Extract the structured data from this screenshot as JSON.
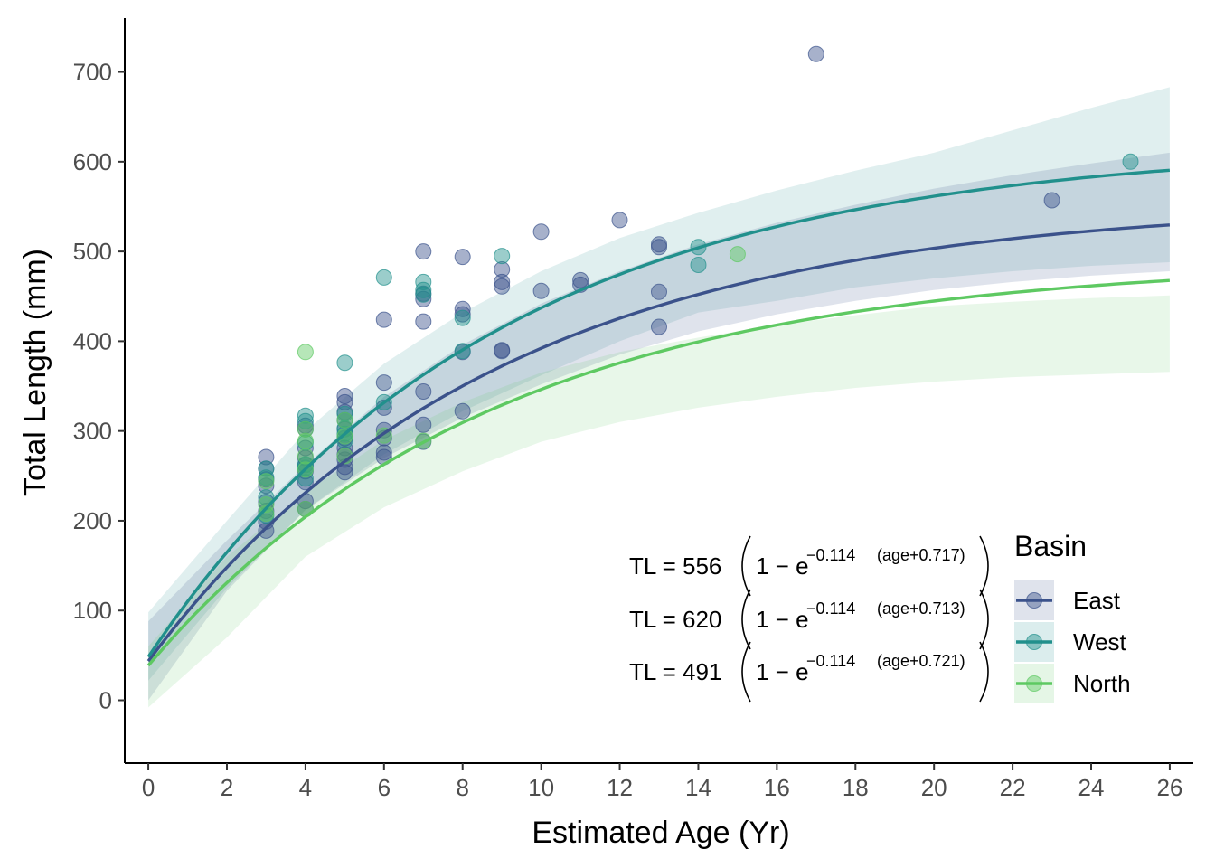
{
  "chart_data": {
    "type": "scatter",
    "xlabel": "Estimated Age (Yr)",
    "ylabel": "Total Length (mm)",
    "xlim": [
      -0.6,
      26.6
    ],
    "ylim": [
      -70,
      760
    ],
    "x_ticks": [
      0,
      2,
      4,
      6,
      8,
      10,
      12,
      14,
      16,
      18,
      20,
      22,
      24,
      26
    ],
    "y_ticks": [
      0,
      100,
      200,
      300,
      400,
      500,
      600,
      700
    ],
    "grid": false,
    "legend": {
      "title": "Basin",
      "position": "bottom-right",
      "entries": [
        "East",
        "West",
        "North"
      ]
    },
    "series": [
      {
        "name": "East",
        "color": "#3b528b",
        "band_color": "#3b528b",
        "fit": {
          "Linf": 556,
          "K": 0.114,
          "t0": -0.717
        },
        "band_upper": [
          [
            0,
            88
          ],
          [
            2,
            178
          ],
          [
            4,
            262
          ],
          [
            6,
            338
          ],
          [
            8,
            396
          ],
          [
            10,
            442
          ],
          [
            12,
            478
          ],
          [
            14,
            508
          ],
          [
            16,
            532
          ],
          [
            18,
            552
          ],
          [
            20,
            570
          ],
          [
            22,
            585
          ],
          [
            24,
            598
          ],
          [
            26,
            610
          ]
        ],
        "band_lower": [
          [
            0,
            0
          ],
          [
            2,
            122
          ],
          [
            4,
            212
          ],
          [
            6,
            270
          ],
          [
            8,
            315
          ],
          [
            10,
            352
          ],
          [
            12,
            385
          ],
          [
            14,
            411
          ],
          [
            16,
            430
          ],
          [
            18,
            445
          ],
          [
            20,
            457
          ],
          [
            22,
            466
          ],
          [
            24,
            473
          ],
          [
            26,
            478
          ]
        ],
        "points": [
          [
            3,
            271
          ],
          [
            3,
            258
          ],
          [
            3,
            246
          ],
          [
            3,
            239
          ],
          [
            3,
            221
          ],
          [
            3,
            211
          ],
          [
            3,
            199
          ],
          [
            3,
            189
          ],
          [
            4,
            306
          ],
          [
            4,
            302
          ],
          [
            4,
            281
          ],
          [
            4,
            270
          ],
          [
            4,
            262
          ],
          [
            4,
            255
          ],
          [
            4,
            243
          ],
          [
            4,
            222
          ],
          [
            4,
            213
          ],
          [
            5,
            339
          ],
          [
            5,
            332
          ],
          [
            5,
            321
          ],
          [
            5,
            312
          ],
          [
            5,
            302
          ],
          [
            5,
            292
          ],
          [
            5,
            281
          ],
          [
            5,
            274
          ],
          [
            5,
            268
          ],
          [
            5,
            260
          ],
          [
            5,
            254
          ],
          [
            6,
            424
          ],
          [
            6,
            354
          ],
          [
            6,
            326
          ],
          [
            6,
            301
          ],
          [
            6,
            292
          ],
          [
            6,
            276
          ],
          [
            6,
            271
          ],
          [
            7,
            500
          ],
          [
            7,
            453
          ],
          [
            7,
            447
          ],
          [
            7,
            422
          ],
          [
            7,
            344
          ],
          [
            7,
            307
          ],
          [
            7,
            288
          ],
          [
            8,
            494
          ],
          [
            8,
            436
          ],
          [
            8,
            430
          ],
          [
            8,
            388
          ],
          [
            8,
            322
          ],
          [
            9,
            480
          ],
          [
            9,
            466
          ],
          [
            9,
            461
          ],
          [
            9,
            390
          ],
          [
            9,
            389
          ],
          [
            10,
            522
          ],
          [
            10,
            456
          ],
          [
            11,
            468
          ],
          [
            11,
            463
          ],
          [
            12,
            535
          ],
          [
            13,
            508
          ],
          [
            13,
            505
          ],
          [
            13,
            455
          ],
          [
            13,
            416
          ],
          [
            17,
            720
          ],
          [
            23,
            557
          ]
        ]
      },
      {
        "name": "West",
        "color": "#21908c",
        "band_color": "#21908c",
        "fit": {
          "Linf": 620,
          "K": 0.114,
          "t0": -0.713
        },
        "band_upper": [
          [
            0,
            98
          ],
          [
            2,
            200
          ],
          [
            4,
            300
          ],
          [
            6,
            375
          ],
          [
            8,
            432
          ],
          [
            10,
            478
          ],
          [
            12,
            515
          ],
          [
            14,
            543
          ],
          [
            16,
            568
          ],
          [
            18,
            590
          ],
          [
            20,
            610
          ],
          [
            22,
            635
          ],
          [
            24,
            660
          ],
          [
            26,
            683
          ]
        ],
        "band_lower": [
          [
            0,
            22
          ],
          [
            2,
            125
          ],
          [
            4,
            212
          ],
          [
            6,
            274
          ],
          [
            8,
            322
          ],
          [
            10,
            362
          ],
          [
            12,
            400
          ],
          [
            14,
            432
          ],
          [
            16,
            445
          ],
          [
            18,
            460
          ],
          [
            20,
            470
          ],
          [
            22,
            478
          ],
          [
            24,
            484
          ],
          [
            26,
            488
          ]
        ],
        "points": [
          [
            3,
            258
          ],
          [
            3,
            248
          ],
          [
            3,
            226
          ],
          [
            3,
            206
          ],
          [
            4,
            317
          ],
          [
            4,
            311
          ],
          [
            4,
            287
          ],
          [
            4,
            263
          ],
          [
            4,
            259
          ],
          [
            4,
            247
          ],
          [
            5,
            376
          ],
          [
            5,
            319
          ],
          [
            5,
            303
          ],
          [
            5,
            297
          ],
          [
            5,
            289
          ],
          [
            6,
            471
          ],
          [
            6,
            332
          ],
          [
            7,
            466
          ],
          [
            7,
            457
          ],
          [
            7,
            452
          ],
          [
            8,
            426
          ],
          [
            8,
            389
          ],
          [
            9,
            495
          ],
          [
            14,
            505
          ],
          [
            14,
            485
          ],
          [
            25,
            600
          ]
        ]
      },
      {
        "name": "North",
        "color": "#5ec962",
        "band_color": "#5ec962",
        "fit": {
          "Linf": 491,
          "K": 0.114,
          "t0": -0.721
        },
        "band_upper": [
          [
            0,
            60
          ],
          [
            2,
            160
          ],
          [
            4,
            232
          ],
          [
            6,
            290
          ],
          [
            8,
            332
          ],
          [
            10,
            365
          ],
          [
            12,
            388
          ],
          [
            14,
            404
          ],
          [
            16,
            418
          ],
          [
            18,
            429
          ],
          [
            20,
            439
          ],
          [
            22,
            444
          ],
          [
            24,
            448
          ],
          [
            26,
            451
          ]
        ],
        "band_lower": [
          [
            0,
            -8
          ],
          [
            2,
            70
          ],
          [
            4,
            160
          ],
          [
            6,
            215
          ],
          [
            8,
            255
          ],
          [
            10,
            288
          ],
          [
            12,
            310
          ],
          [
            14,
            326
          ],
          [
            16,
            338
          ],
          [
            18,
            348
          ],
          [
            20,
            355
          ],
          [
            22,
            360
          ],
          [
            24,
            363
          ],
          [
            26,
            366
          ]
        ],
        "points": [
          [
            3,
            244
          ],
          [
            3,
            218
          ],
          [
            3,
            208
          ],
          [
            4,
            388
          ],
          [
            4,
            302
          ],
          [
            4,
            289
          ],
          [
            4,
            272
          ],
          [
            4,
            257
          ],
          [
            4,
            213
          ],
          [
            5,
            312
          ],
          [
            5,
            294
          ],
          [
            5,
            272
          ],
          [
            6,
            295
          ],
          [
            7,
            289
          ],
          [
            15,
            497
          ]
        ]
      }
    ],
    "annotations": [
      {
        "series": "East",
        "coef": "TL = 556",
        "exp_rate": "−0.114",
        "exp_term": "(age+0.717)"
      },
      {
        "series": "West",
        "coef": "TL = 620",
        "exp_rate": "−0.114",
        "exp_term": "(age+0.713)"
      },
      {
        "series": "North",
        "coef": "TL = 491",
        "exp_rate": "−0.114",
        "exp_term": "(age+0.721)"
      }
    ],
    "annotation_common": {
      "one_minus_e": "1 − e"
    }
  }
}
